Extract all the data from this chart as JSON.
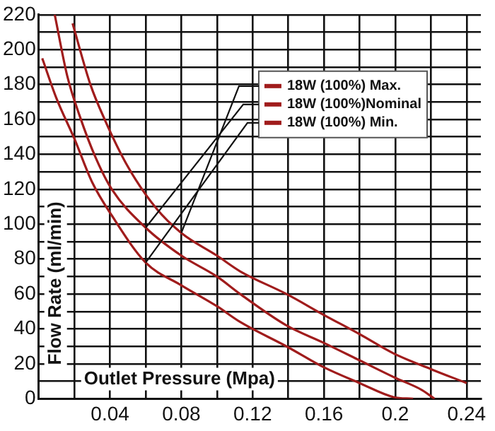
{
  "chart_data": {
    "type": "line",
    "xlabel": "Outlet Pressure (Mpa)",
    "ylabel": "Flow Rate (ml/min)",
    "xlim": [
      0,
      0.248
    ],
    "ylim": [
      0,
      220
    ],
    "xticks": [
      {
        "value": 0.02,
        "label": null
      },
      0.04,
      {
        "value": 0.06,
        "label": null
      },
      0.08,
      {
        "value": 0.1,
        "label": null
      },
      0.12,
      {
        "value": 0.14,
        "label": null
      },
      0.16,
      {
        "value": 0.18,
        "label": null
      },
      0.2,
      {
        "value": 0.22,
        "label": null
      },
      0.24
    ],
    "yticks": [
      0,
      {
        "value": 10,
        "label": null
      },
      20,
      {
        "value": 30,
        "label": null
      },
      40,
      {
        "value": 50,
        "label": null
      },
      60,
      {
        "value": 70,
        "label": null
      },
      80,
      {
        "value": 90,
        "label": null
      },
      100,
      {
        "value": 110,
        "label": null
      },
      120,
      {
        "value": 130,
        "label": null
      },
      140,
      {
        "value": 150,
        "label": null
      },
      160,
      {
        "value": 170,
        "label": null
      },
      180,
      {
        "value": 190,
        "label": null
      },
      200,
      {
        "value": 210,
        "label": null
      },
      220
    ],
    "grid": true,
    "legend": "top right",
    "marker": "none",
    "line_style": "solid",
    "series": [
      {
        "name": "18W (100%) Max.",
        "color": "#a01c1c",
        "x": [
          0.019,
          0.029,
          0.037,
          0.05,
          0.066,
          0.08,
          0.1,
          0.113,
          0.139,
          0.16,
          0.18,
          0.199,
          0.22,
          0.24
        ],
        "values": [
          215,
          180,
          160,
          133,
          109,
          95,
          82,
          73,
          60,
          48,
          37,
          26,
          17,
          9
        ]
      },
      {
        "name": "18W (100%)Nominal",
        "color": "#a01c1c",
        "x": [
          0.009,
          0.016,
          0.023,
          0.032,
          0.041,
          0.06,
          0.08,
          0.1,
          0.113,
          0.139,
          0.16,
          0.18,
          0.2,
          0.215,
          0.222
        ],
        "values": [
          220,
          185,
          162,
          138,
          120,
          98,
          82,
          70,
          60,
          42,
          32,
          22,
          12,
          5,
          0
        ]
      },
      {
        "name": "18W (100%) Min.",
        "color": "#a01c1c",
        "x": [
          0.002,
          0.01,
          0.02,
          0.03,
          0.041,
          0.06,
          0.08,
          0.1,
          0.113,
          0.139,
          0.16,
          0.18,
          0.199,
          0.21
        ],
        "values": [
          195,
          172,
          149,
          124,
          105,
          78,
          65,
          53,
          44,
          30,
          18,
          9,
          1,
          0
        ]
      }
    ]
  }
}
